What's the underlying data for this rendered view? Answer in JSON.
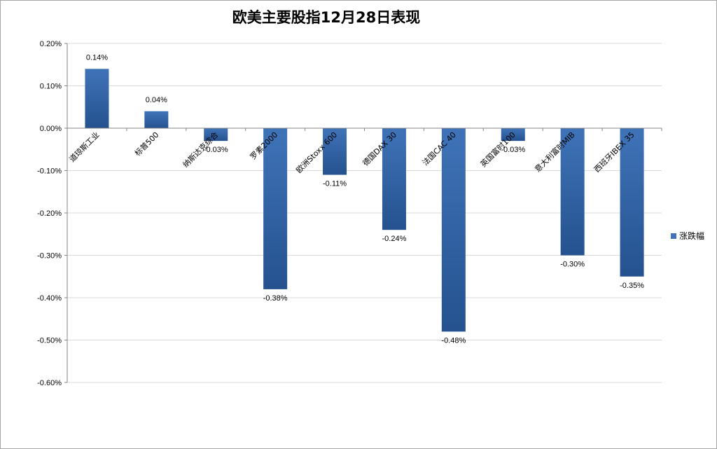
{
  "colors": {
    "bar": "#3f73b8",
    "bar_dark": "#25528f",
    "grid": "#d9d9d9",
    "axis": "#868686"
  },
  "chart_data": {
    "type": "bar",
    "title": "欧美主要股指12月28日表现",
    "categories": [
      "道琼斯工业",
      "标普500",
      "纳斯达克综合",
      "罗素2000",
      "欧洲Stoxx 600",
      "德国DAX 30",
      "法国CAC 40",
      "英国富时100",
      "意大利富时MIB",
      "西班牙IBEX 35"
    ],
    "series": [
      {
        "name": "涨跌幅",
        "values": [
          0.14,
          0.04,
          -0.03,
          -0.38,
          -0.11,
          -0.24,
          -0.48,
          -0.03,
          -0.3,
          -0.35
        ],
        "labels": [
          "0.14%",
          "0.04%",
          "-0.03%",
          "-0.38%",
          "-0.11%",
          "-0.24%",
          "-0.48%",
          "-0.03%",
          "-0.30%",
          "-0.35%"
        ]
      }
    ],
    "ylim": [
      -0.6,
      0.2
    ],
    "yticks": [
      0.2,
      0.1,
      0.0,
      -0.1,
      -0.2,
      -0.3,
      -0.4,
      -0.5,
      -0.6
    ],
    "ytick_labels": [
      "0.20%",
      "0.10%",
      "0.00%",
      "-0.10%",
      "-0.20%",
      "-0.30%",
      "-0.40%",
      "-0.50%",
      "-0.60%"
    ],
    "grid": true,
    "legend": "right"
  }
}
